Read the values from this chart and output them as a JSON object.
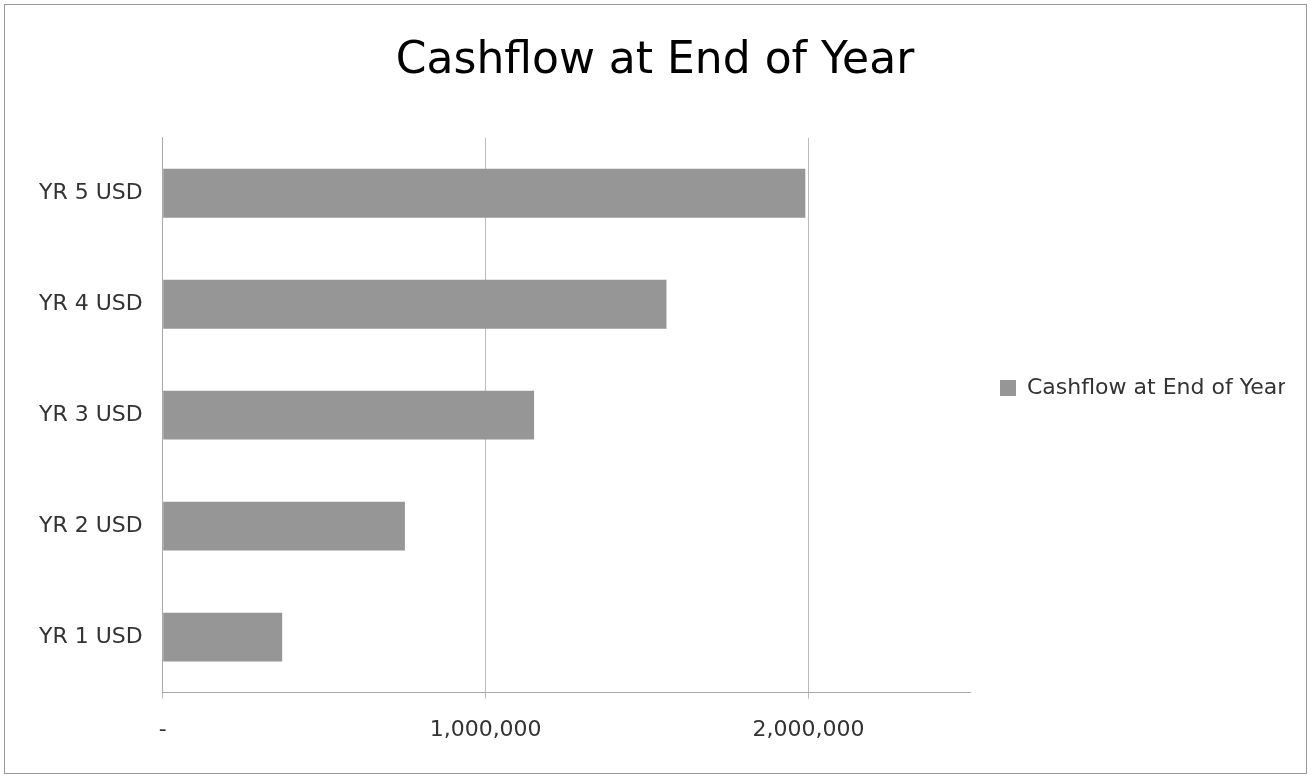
{
  "chart_data": {
    "type": "bar",
    "orientation": "horizontal",
    "title": "Cashflow at End of Year",
    "categories": [
      "YR 5 USD",
      "YR 4 USD",
      "YR 3 USD",
      "YR 2 USD",
      "YR 1 USD"
    ],
    "series": [
      {
        "name": "Cashflow at End of Year",
        "color": "#969696",
        "values": [
          1990000,
          1560000,
          1150000,
          750000,
          370000
        ]
      }
    ],
    "xlim": [
      0,
      2500000
    ],
    "xticks": [
      {
        "value": 0,
        "label": "-"
      },
      {
        "value": 1000000,
        "label": "1,000,000"
      },
      {
        "value": 2000000,
        "label": "2,000,000"
      }
    ],
    "grid": "x",
    "legend": "right"
  }
}
